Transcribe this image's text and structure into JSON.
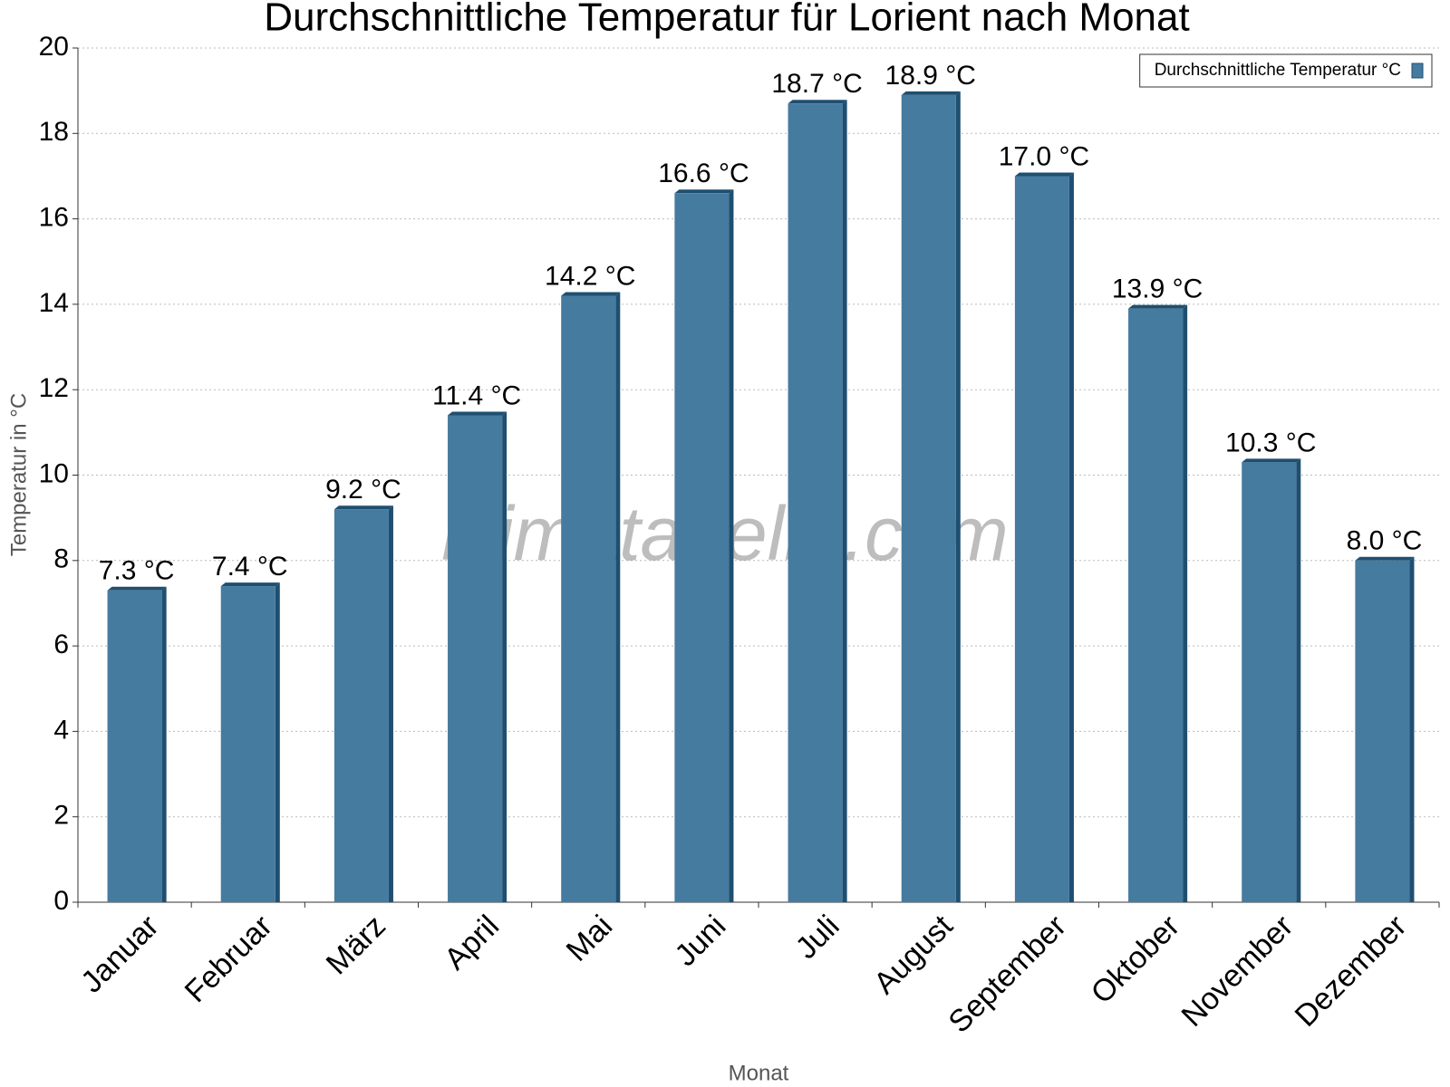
{
  "chart_data": {
    "type": "bar",
    "title": "Durchschnittliche Temperatur für Lorient nach Monat",
    "x_label": "Monat",
    "y_label": "Temperatur in °C",
    "watermark": "klimatabelle.com",
    "categories": [
      "Januar",
      "Februar",
      "März",
      "April",
      "Mai",
      "Juni",
      "Juli",
      "August",
      "September",
      "Oktober",
      "November",
      "Dezember"
    ],
    "series": [
      {
        "name": "Durchschnittliche Temperatur °C",
        "color": "#467ba0",
        "values": [
          7.3,
          7.4,
          9.2,
          11.4,
          14.2,
          16.6,
          18.7,
          18.9,
          17.0,
          13.9,
          10.3,
          8.0
        ],
        "value_labels": [
          "7.3 °C",
          "7.4 °C",
          "9.2 °C",
          "11.4 °C",
          "14.2 °C",
          "16.6 °C",
          "18.7 °C",
          "18.9 °C",
          "17.0 °C",
          "13.9 °C",
          "10.3 °C",
          "8.0 °C"
        ]
      }
    ],
    "ylim": [
      0,
      20
    ],
    "yticks": [
      0,
      2,
      4,
      6,
      8,
      10,
      12,
      14,
      16,
      18,
      20
    ],
    "grid": true,
    "legend": "upper right"
  }
}
